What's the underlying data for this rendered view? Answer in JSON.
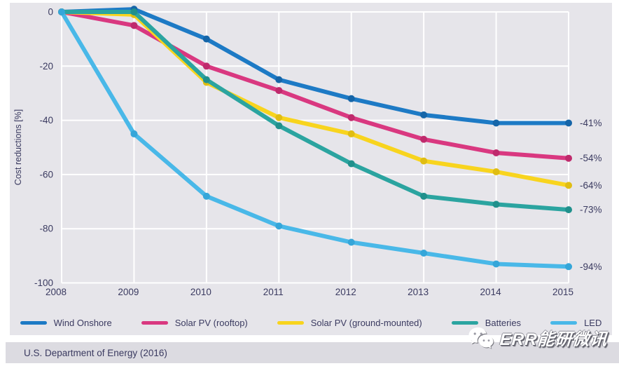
{
  "chart_data": {
    "type": "line",
    "title": "",
    "ylabel": "Cost reductions [%]",
    "xlabel": "",
    "categories": [
      "2008",
      "2009",
      "2010",
      "2011",
      "2012",
      "2013",
      "2014",
      "2015"
    ],
    "y_ticks": [
      "0",
      "-20",
      "-40",
      "-60",
      "-80",
      "-100"
    ],
    "y_tick_values": [
      0,
      -20,
      -40,
      -60,
      -80,
      -100
    ],
    "ylim": [
      -100,
      3
    ],
    "grid": true,
    "legend_position": "bottom",
    "series": [
      {
        "name": "Wind Onshore",
        "color": "#1d7ac5",
        "marker_color": "#1565a8",
        "values": [
          0,
          1,
          -10,
          -25,
          -32,
          -38,
          -41,
          -41
        ],
        "end_label": "-41%"
      },
      {
        "name": "Solar PV (rooftop)",
        "color": "#d93880",
        "marker_color": "#bf2a6c",
        "values": [
          0,
          -5,
          -20,
          -29,
          -39,
          -47,
          -52,
          -54
        ],
        "end_label": "-54%"
      },
      {
        "name": "Solar PV (ground-mounted)",
        "color": "#f8d41e",
        "marker_color": "#e0bd12",
        "values": [
          0,
          -1,
          -26,
          -39,
          -45,
          -55,
          -59,
          -64
        ],
        "end_label": "-64%"
      },
      {
        "name": "Batteries",
        "color": "#2ba4a0",
        "marker_color": "#20908c",
        "values": [
          0,
          0,
          -25,
          -42,
          -56,
          -68,
          -71,
          -73
        ],
        "end_label": "-73%"
      },
      {
        "name": "LED",
        "color": "#49b8e8",
        "marker_color": "#35a6d9",
        "values": [
          0,
          -45,
          -68,
          -79,
          -85,
          -89,
          -93,
          -94
        ],
        "end_label": "-94%"
      }
    ],
    "colors": {
      "panel_background": "#e6e5ea",
      "gridline": "#ffffff",
      "text": "#3a3a60",
      "source_bar_background": "#dcdbe1"
    }
  },
  "source": {
    "text": "U.S. Department of Energy (2016)"
  },
  "watermark": {
    "text": "ERR能研微讯",
    "logo": "wechat-chat-bubbles-icon"
  }
}
